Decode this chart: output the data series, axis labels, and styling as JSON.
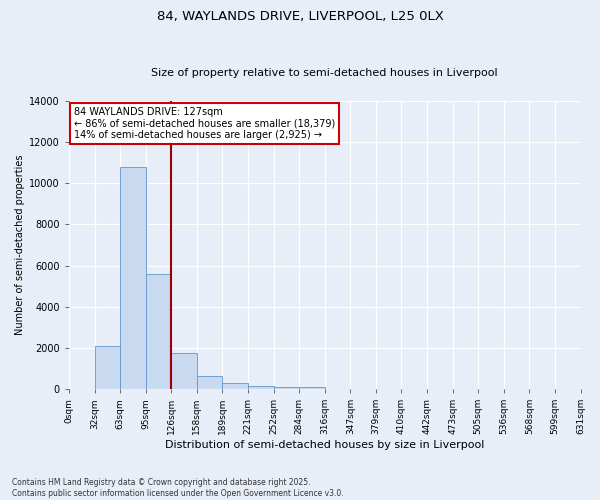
{
  "title_line1": "84, WAYLANDS DRIVE, LIVERPOOL, L25 0LX",
  "title_line2": "Size of property relative to semi-detached houses in Liverpool",
  "xlabel": "Distribution of semi-detached houses by size in Liverpool",
  "ylabel": "Number of semi-detached properties",
  "bar_values": [
    0,
    2100,
    10800,
    5600,
    1750,
    650,
    300,
    150,
    80,
    100,
    0,
    0,
    0,
    0,
    0,
    0,
    0,
    0,
    0,
    0
  ],
  "bin_labels": [
    "0sqm",
    "32sqm",
    "63sqm",
    "95sqm",
    "126sqm",
    "158sqm",
    "189sqm",
    "221sqm",
    "252sqm",
    "284sqm",
    "316sqm",
    "347sqm",
    "379sqm",
    "410sqm",
    "442sqm",
    "473sqm",
    "505sqm",
    "536sqm",
    "568sqm",
    "599sqm",
    "631sqm"
  ],
  "bar_color": "#c9d9f0",
  "bar_edge_color": "#6096d0",
  "vline_x": 4.0,
  "vline_color": "#990000",
  "ylim": [
    0,
    14000
  ],
  "yticks": [
    0,
    2000,
    4000,
    6000,
    8000,
    10000,
    12000,
    14000
  ],
  "annotation_title": "84 WAYLANDS DRIVE: 127sqm",
  "annotation_line1": "← 86% of semi-detached houses are smaller (18,379)",
  "annotation_line2": "14% of semi-detached houses are larger (2,925) →",
  "annotation_box_color": "#ffffff",
  "annotation_box_edge": "#cc0000",
  "footer_line1": "Contains HM Land Registry data © Crown copyright and database right 2025.",
  "footer_line2": "Contains public sector information licensed under the Open Government Licence v3.0.",
  "background_color": "#e8eef8",
  "grid_color": "#ffffff"
}
